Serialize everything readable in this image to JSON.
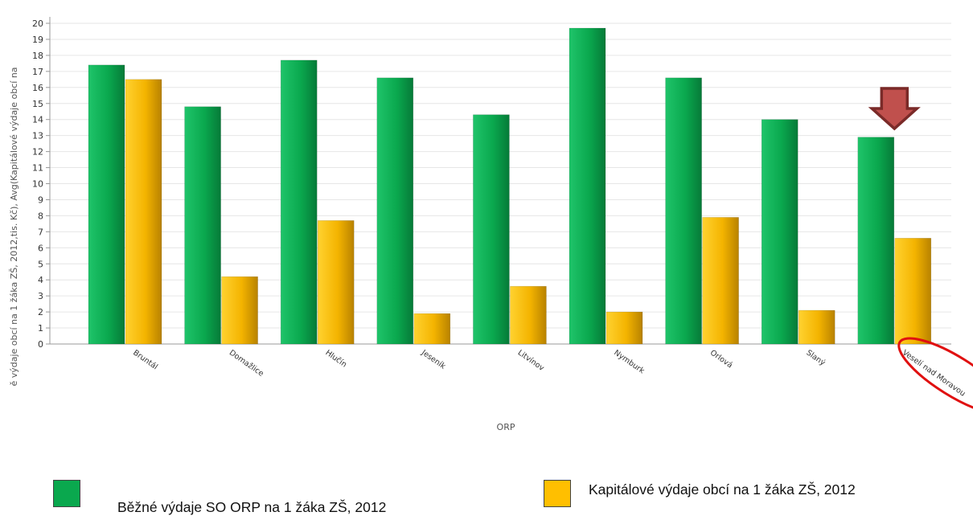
{
  "chart_data": {
    "type": "bar",
    "title": "",
    "xlabel": "ORP",
    "ylabel": "ě výdaje obcí na 1 žáka ZŠ, 2012,tis. Kč), Avg(Kapitálové výdaje obcí na",
    "ylim": [
      0,
      20
    ],
    "ytick_step": 1,
    "grid": true,
    "legend_position": "bottom",
    "categories": [
      "Bruntál",
      "Domažlice",
      "Hlučín",
      "Jeseník",
      "Litvínov",
      "Nymburk",
      "Orlová",
      "Slaný",
      "Veselí nad Moravou"
    ],
    "series": [
      {
        "name": "Běžné výdaje SO ORP na 1 žáka ZŠ, 2012",
        "color": "#0aa84e",
        "values": [
          17.4,
          14.8,
          17.7,
          16.6,
          14.3,
          19.7,
          16.6,
          14.0,
          12.9
        ]
      },
      {
        "name": "Kapitálové výdaje obcí na 1 žáka ZŠ, 2012",
        "color": "#ffbf00",
        "values": [
          16.5,
          4.2,
          7.7,
          1.9,
          3.6,
          2.0,
          7.9,
          2.1,
          6.6
        ]
      }
    ],
    "annotations": {
      "arrow_color": "#c0504d",
      "arrow_outline": "#7a2a28",
      "ellipse_color": "#e01010",
      "highlighted_category": "Veselí nad Moravou"
    }
  }
}
